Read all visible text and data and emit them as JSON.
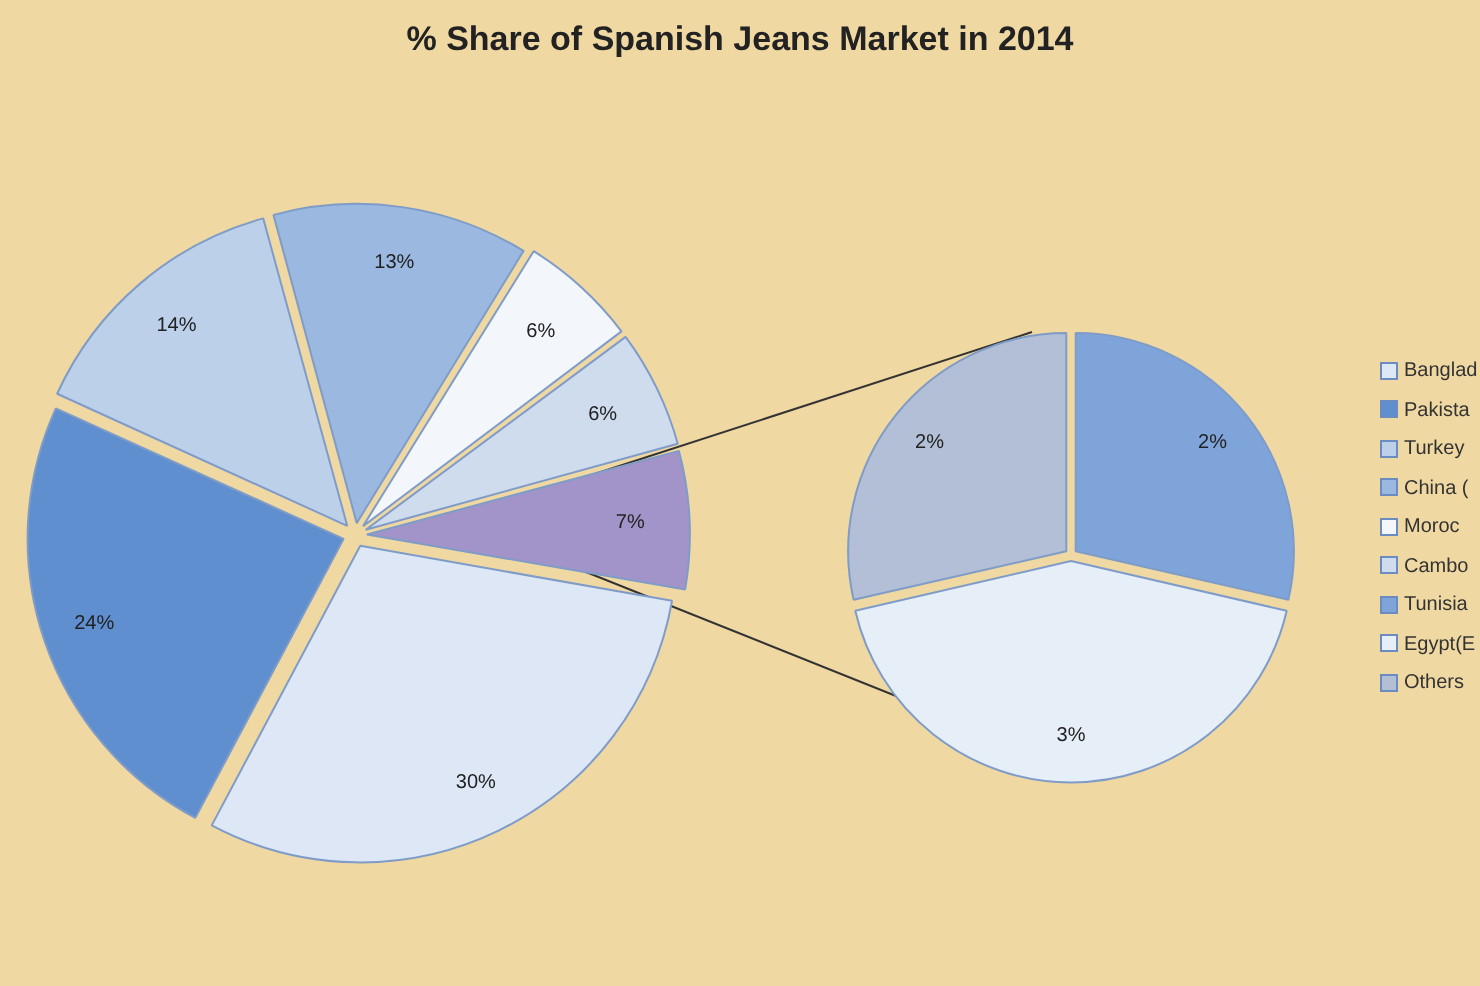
{
  "chart_data": [
    {
      "type": "pie",
      "title": "% Share of Spanish Jeans Market in 2014",
      "categories": [
        "Banglad",
        "Pakista",
        "Turkey",
        "China (",
        "Moroc",
        "Cambo",
        null
      ],
      "values": [
        30,
        24,
        14,
        13,
        6,
        6,
        7
      ],
      "colors": [
        "#dde7f5",
        "#5f8fcf",
        "#bdd0ea",
        "#9ab8e0",
        "#f3f6fb",
        "#cfdcee",
        "#a294c8"
      ],
      "value_labels": [
        "30%",
        "24%",
        "14%",
        "13%",
        "6%",
        "6%",
        "7%"
      ],
      "legend": "right"
    },
    {
      "type": "pie",
      "categories": [
        "Tunisia",
        "Egypt(E",
        "Others"
      ],
      "values": [
        2,
        3,
        2
      ],
      "colors": [
        "#7ea4da",
        "#e6eef8",
        "#b3bfd6"
      ],
      "value_labels": [
        "2%",
        "3%",
        "2%"
      ],
      "legend": "right"
    }
  ]
}
